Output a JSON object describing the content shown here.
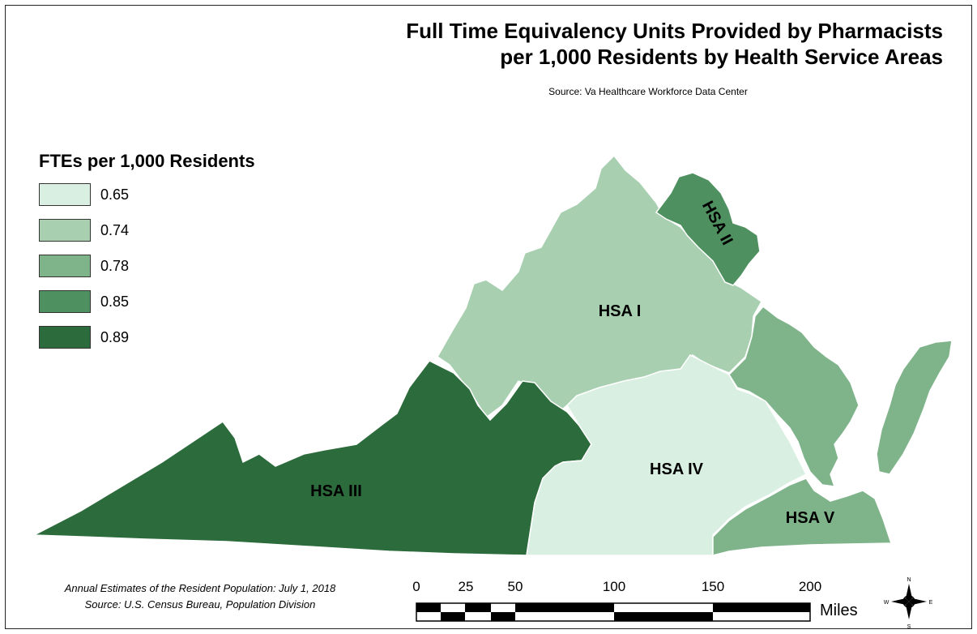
{
  "title": {
    "line1": "Full Time Equivalency Units Provided by Pharmacists",
    "line2": "per 1,000 Residents by Health Service Areas"
  },
  "source": "Source: Va Healthcare Workforce Data Center",
  "legend": {
    "title": "FTEs per 1,000 Residents",
    "items": [
      {
        "label": "0.65",
        "color": "#d9efe1"
      },
      {
        "label": "0.74",
        "color": "#a7cfb0"
      },
      {
        "label": "0.78",
        "color": "#7fb48b"
      },
      {
        "label": "0.85",
        "color": "#4e9060"
      },
      {
        "label": "0.89",
        "color": "#2c6b3b"
      }
    ]
  },
  "regions": [
    {
      "label": "HSA I",
      "value": "0.74",
      "color": "#a7cfb0"
    },
    {
      "label": "HSA II",
      "value": "0.85",
      "color": "#4e9060"
    },
    {
      "label": "HSA III",
      "value": "0.89",
      "color": "#2c6b3b"
    },
    {
      "label": "HSA IV",
      "value": "0.65",
      "color": "#d9efe1"
    },
    {
      "label": "HSA V",
      "value": "0.78",
      "color": "#7fb48b"
    }
  ],
  "footnote": {
    "line1": "Annual Estimates of the Resident Population: July 1, 2018",
    "line2": "Source: U.S. Census Bureau, Population Division"
  },
  "scale_bar": {
    "ticks": [
      "0",
      "25",
      "50",
      "100",
      "150",
      "200"
    ],
    "unit": "Miles"
  },
  "north_arrow": "compass-icon"
}
